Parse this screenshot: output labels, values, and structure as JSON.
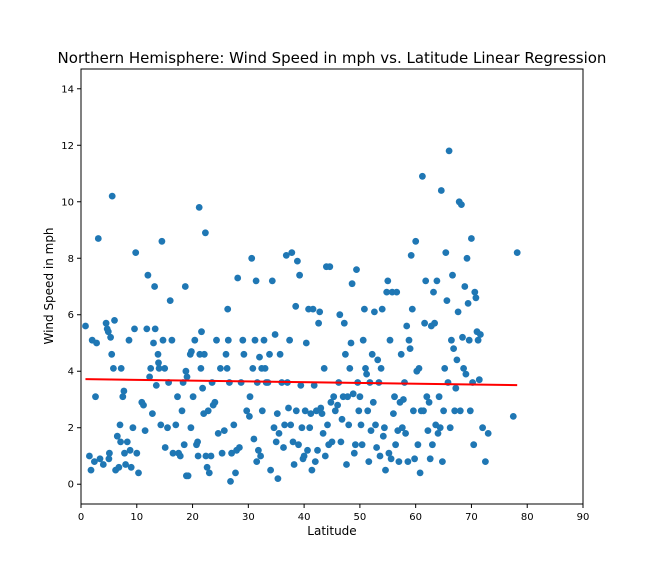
{
  "chart_data": {
    "type": "scatter",
    "title": "Northern Hemisphere: Wind Speed in mph vs. Latitude Linear Regression",
    "xlabel": "Latitude",
    "ylabel": "Wind Speed in mph",
    "xlim": [
      0,
      90
    ],
    "ylim": [
      -0.7,
      14.7
    ],
    "xticks": [
      "0",
      "10",
      "20",
      "30",
      "40",
      "50",
      "60",
      "70",
      "80",
      "90"
    ],
    "yticks": [
      "0",
      "2",
      "4",
      "6",
      "8",
      "10",
      "12",
      "14"
    ],
    "grid": false,
    "marker_color": "#1f77b4",
    "line_color": "#ff0000",
    "regression_line": {
      "x": [
        0.8,
        78.2
      ],
      "y": [
        3.72,
        3.51
      ]
    },
    "points": [
      [
        0.8,
        5.6
      ],
      [
        1.5,
        1.0
      ],
      [
        1.8,
        0.5
      ],
      [
        2.0,
        5.1
      ],
      [
        2.4,
        0.8
      ],
      [
        2.6,
        3.1
      ],
      [
        2.8,
        5.0
      ],
      [
        3.1,
        8.7
      ],
      [
        3.4,
        0.9
      ],
      [
        4.0,
        0.7
      ],
      [
        4.5,
        5.7
      ],
      [
        4.7,
        5.5
      ],
      [
        4.9,
        5.4
      ],
      [
        5.0,
        0.9
      ],
      [
        5.1,
        1.1
      ],
      [
        5.3,
        5.2
      ],
      [
        5.5,
        4.6
      ],
      [
        5.6,
        10.2
      ],
      [
        5.8,
        4.1
      ],
      [
        6.0,
        5.8
      ],
      [
        6.2,
        0.5
      ],
      [
        6.5,
        1.7
      ],
      [
        6.8,
        0.6
      ],
      [
        7.0,
        2.1
      ],
      [
        7.1,
        1.5
      ],
      [
        7.2,
        4.1
      ],
      [
        7.5,
        3.1
      ],
      [
        7.7,
        3.3
      ],
      [
        7.8,
        1.1
      ],
      [
        8.0,
        0.7
      ],
      [
        8.3,
        1.5
      ],
      [
        8.6,
        5.1
      ],
      [
        8.8,
        1.2
      ],
      [
        9.0,
        0.6
      ],
      [
        9.3,
        2.0
      ],
      [
        9.6,
        5.5
      ],
      [
        9.8,
        8.2
      ],
      [
        10.0,
        1.1
      ],
      [
        10.3,
        0.4
      ],
      [
        10.9,
        2.9
      ],
      [
        11.2,
        2.8
      ],
      [
        11.5,
        1.9
      ],
      [
        11.8,
        5.5
      ],
      [
        12.0,
        7.4
      ],
      [
        12.3,
        3.8
      ],
      [
        12.5,
        4.1
      ],
      [
        12.8,
        2.5
      ],
      [
        13.0,
        5.0
      ],
      [
        13.2,
        7.0
      ],
      [
        13.3,
        5.5
      ],
      [
        13.5,
        3.5
      ],
      [
        13.8,
        4.6
      ],
      [
        13.9,
        4.3
      ],
      [
        14.0,
        4.1
      ],
      [
        14.3,
        2.1
      ],
      [
        14.5,
        8.6
      ],
      [
        14.7,
        5.1
      ],
      [
        15.0,
        4.1
      ],
      [
        15.1,
        1.3
      ],
      [
        15.5,
        2.0
      ],
      [
        15.7,
        3.6
      ],
      [
        16.0,
        6.5
      ],
      [
        16.3,
        5.1
      ],
      [
        16.5,
        1.1
      ],
      [
        17.0,
        2.1
      ],
      [
        17.3,
        3.1
      ],
      [
        17.5,
        1.1
      ],
      [
        17.8,
        1.0
      ],
      [
        18.1,
        2.6
      ],
      [
        18.3,
        3.6
      ],
      [
        18.5,
        1.4
      ],
      [
        18.7,
        7.0
      ],
      [
        18.8,
        4.0
      ],
      [
        18.9,
        0.3
      ],
      [
        19.0,
        3.8
      ],
      [
        19.2,
        0.3
      ],
      [
        19.6,
        4.6
      ],
      [
        19.7,
        2.0
      ],
      [
        19.8,
        4.7
      ],
      [
        20.1,
        3.1
      ],
      [
        20.4,
        5.1
      ],
      [
        20.7,
        1.4
      ],
      [
        20.9,
        1.5
      ],
      [
        21.0,
        1.0
      ],
      [
        21.2,
        9.8
      ],
      [
        21.3,
        4.6
      ],
      [
        21.5,
        4.1
      ],
      [
        21.6,
        5.4
      ],
      [
        21.8,
        3.4
      ],
      [
        22.0,
        2.5
      ],
      [
        22.1,
        4.6
      ],
      [
        22.3,
        8.9
      ],
      [
        22.4,
        1.0
      ],
      [
        22.6,
        0.6
      ],
      [
        22.8,
        2.6
      ],
      [
        23.0,
        0.4
      ],
      [
        23.3,
        1.0
      ],
      [
        23.5,
        3.6
      ],
      [
        23.7,
        2.8
      ],
      [
        24.0,
        2.9
      ],
      [
        24.3,
        5.1
      ],
      [
        24.6,
        1.8
      ],
      [
        25.0,
        4.1
      ],
      [
        25.3,
        1.1
      ],
      [
        25.7,
        1.9
      ],
      [
        26.0,
        4.6
      ],
      [
        26.2,
        4.1
      ],
      [
        26.3,
        6.2
      ],
      [
        26.4,
        5.1
      ],
      [
        26.6,
        3.6
      ],
      [
        26.8,
        0.1
      ],
      [
        27.0,
        1.1
      ],
      [
        27.4,
        2.1
      ],
      [
        27.7,
        0.4
      ],
      [
        27.9,
        1.2
      ],
      [
        28.1,
        7.3
      ],
      [
        28.4,
        1.3
      ],
      [
        28.7,
        3.6
      ],
      [
        29.0,
        5.1
      ],
      [
        29.2,
        4.6
      ],
      [
        29.7,
        2.6
      ],
      [
        30.2,
        2.4
      ],
      [
        30.3,
        3.1
      ],
      [
        30.6,
        8.0
      ],
      [
        30.8,
        4.1
      ],
      [
        31.0,
        1.6
      ],
      [
        31.2,
        5.1
      ],
      [
        31.4,
        7.2
      ],
      [
        31.5,
        0.8
      ],
      [
        31.6,
        3.6
      ],
      [
        31.8,
        1.2
      ],
      [
        32.0,
        4.5
      ],
      [
        32.2,
        1.0
      ],
      [
        32.4,
        4.1
      ],
      [
        32.5,
        2.6
      ],
      [
        32.8,
        5.1
      ],
      [
        33.0,
        4.1
      ],
      [
        33.2,
        3.6
      ],
      [
        33.5,
        3.6
      ],
      [
        33.8,
        4.6
      ],
      [
        34.0,
        0.5
      ],
      [
        34.3,
        7.2
      ],
      [
        34.6,
        2.0
      ],
      [
        34.8,
        5.3
      ],
      [
        35.0,
        1.5
      ],
      [
        35.2,
        2.5
      ],
      [
        35.3,
        0.2
      ],
      [
        35.5,
        1.8
      ],
      [
        35.7,
        4.6
      ],
      [
        36.0,
        3.6
      ],
      [
        36.3,
        1.3
      ],
      [
        36.5,
        2.1
      ],
      [
        36.8,
        8.1
      ],
      [
        37.0,
        3.6
      ],
      [
        37.2,
        2.7
      ],
      [
        37.4,
        5.1
      ],
      [
        37.6,
        2.1
      ],
      [
        37.8,
        8.2
      ],
      [
        38.0,
        1.5
      ],
      [
        38.2,
        0.7
      ],
      [
        38.5,
        6.3
      ],
      [
        38.6,
        2.6
      ],
      [
        38.8,
        7.9
      ],
      [
        39.0,
        1.4
      ],
      [
        39.2,
        7.4
      ],
      [
        39.4,
        3.5
      ],
      [
        39.6,
        2.0
      ],
      [
        39.8,
        0.9
      ],
      [
        40.0,
        1.0
      ],
      [
        40.2,
        2.6
      ],
      [
        40.4,
        5.0
      ],
      [
        40.6,
        1.2
      ],
      [
        40.8,
        6.2
      ],
      [
        41.0,
        2.0
      ],
      [
        41.2,
        2.5
      ],
      [
        41.4,
        0.5
      ],
      [
        41.6,
        6.2
      ],
      [
        41.8,
        3.5
      ],
      [
        42.0,
        0.8
      ],
      [
        42.2,
        2.6
      ],
      [
        42.4,
        1.2
      ],
      [
        42.6,
        5.7
      ],
      [
        42.8,
        6.1
      ],
      [
        43.0,
        2.7
      ],
      [
        43.2,
        2.5
      ],
      [
        43.4,
        1.8
      ],
      [
        43.6,
        4.1
      ],
      [
        43.8,
        1.0
      ],
      [
        44.0,
        7.7
      ],
      [
        44.2,
        2.1
      ],
      [
        44.4,
        1.4
      ],
      [
        44.6,
        7.7
      ],
      [
        44.8,
        2.9
      ],
      [
        45.0,
        1.5
      ],
      [
        45.3,
        3.1
      ],
      [
        45.6,
        2.6
      ],
      [
        46.0,
        2.8
      ],
      [
        46.2,
        3.6
      ],
      [
        46.4,
        6.0
      ],
      [
        46.6,
        1.5
      ],
      [
        46.8,
        2.3
      ],
      [
        47.0,
        3.1
      ],
      [
        47.2,
        5.7
      ],
      [
        47.4,
        4.6
      ],
      [
        47.6,
        0.7
      ],
      [
        47.8,
        3.1
      ],
      [
        48.0,
        2.1
      ],
      [
        48.2,
        4.1
      ],
      [
        48.4,
        5.0
      ],
      [
        48.6,
        7.1
      ],
      [
        48.8,
        3.2
      ],
      [
        49.0,
        1.1
      ],
      [
        49.2,
        1.4
      ],
      [
        49.4,
        7.6
      ],
      [
        49.6,
        3.6
      ],
      [
        49.8,
        2.6
      ],
      [
        50.0,
        3.1
      ],
      [
        50.2,
        2.1
      ],
      [
        50.4,
        1.4
      ],
      [
        50.6,
        5.1
      ],
      [
        50.8,
        6.2
      ],
      [
        51.0,
        4.1
      ],
      [
        51.2,
        3.9
      ],
      [
        51.4,
        2.6
      ],
      [
        51.6,
        0.8
      ],
      [
        51.8,
        3.6
      ],
      [
        52.0,
        1.9
      ],
      [
        52.2,
        4.6
      ],
      [
        52.4,
        2.9
      ],
      [
        52.6,
        6.1
      ],
      [
        52.8,
        2.1
      ],
      [
        53.0,
        1.3
      ],
      [
        53.2,
        4.4
      ],
      [
        53.4,
        3.6
      ],
      [
        53.6,
        1.0
      ],
      [
        53.8,
        4.1
      ],
      [
        54.0,
        6.2
      ],
      [
        54.2,
        1.7
      ],
      [
        54.4,
        2.0
      ],
      [
        54.6,
        0.5
      ],
      [
        54.8,
        6.8
      ],
      [
        55.0,
        7.2
      ],
      [
        55.2,
        1.1
      ],
      [
        55.4,
        5.1
      ],
      [
        55.6,
        0.9
      ],
      [
        55.8,
        6.8
      ],
      [
        56.0,
        2.5
      ],
      [
        56.2,
        3.1
      ],
      [
        56.4,
        1.4
      ],
      [
        56.6,
        6.8
      ],
      [
        56.8,
        1.9
      ],
      [
        57.0,
        0.8
      ],
      [
        57.2,
        2.9
      ],
      [
        57.4,
        4.6
      ],
      [
        57.6,
        2.0
      ],
      [
        57.8,
        3.0
      ],
      [
        58.0,
        3.6
      ],
      [
        58.2,
        1.8
      ],
      [
        58.4,
        5.6
      ],
      [
        58.6,
        0.8
      ],
      [
        58.8,
        5.1
      ],
      [
        59.0,
        4.8
      ],
      [
        59.2,
        8.1
      ],
      [
        59.4,
        6.2
      ],
      [
        59.6,
        2.6
      ],
      [
        59.8,
        0.9
      ],
      [
        60.0,
        8.6
      ],
      [
        60.2,
        4.0
      ],
      [
        60.4,
        1.4
      ],
      [
        60.6,
        4.1
      ],
      [
        60.8,
        0.4
      ],
      [
        61.0,
        2.6
      ],
      [
        61.2,
        10.9
      ],
      [
        61.4,
        2.6
      ],
      [
        61.6,
        5.7
      ],
      [
        61.8,
        7.2
      ],
      [
        62.0,
        3.1
      ],
      [
        62.2,
        1.9
      ],
      [
        62.4,
        2.9
      ],
      [
        62.6,
        0.9
      ],
      [
        62.8,
        5.6
      ],
      [
        63.0,
        1.4
      ],
      [
        63.2,
        6.8
      ],
      [
        63.4,
        5.7
      ],
      [
        63.6,
        2.1
      ],
      [
        63.8,
        7.2
      ],
      [
        64.0,
        1.8
      ],
      [
        64.2,
        3.1
      ],
      [
        64.4,
        2.0
      ],
      [
        64.6,
        10.4
      ],
      [
        64.8,
        0.8
      ],
      [
        65.0,
        2.6
      ],
      [
        65.2,
        4.1
      ],
      [
        65.4,
        8.2
      ],
      [
        65.6,
        6.5
      ],
      [
        65.8,
        3.6
      ],
      [
        66.0,
        11.8
      ],
      [
        66.2,
        2.0
      ],
      [
        66.4,
        5.1
      ],
      [
        66.6,
        7.4
      ],
      [
        66.8,
        4.8
      ],
      [
        67.0,
        2.6
      ],
      [
        67.2,
        3.4
      ],
      [
        67.4,
        4.4
      ],
      [
        67.6,
        6.1
      ],
      [
        67.8,
        10.0
      ],
      [
        68.0,
        2.6
      ],
      [
        68.2,
        9.9
      ],
      [
        68.4,
        5.2
      ],
      [
        68.6,
        4.1
      ],
      [
        68.8,
        7.0
      ],
      [
        69.0,
        3.9
      ],
      [
        69.2,
        8.0
      ],
      [
        69.4,
        6.4
      ],
      [
        69.6,
        5.1
      ],
      [
        69.8,
        2.6
      ],
      [
        70.0,
        8.7
      ],
      [
        70.2,
        3.6
      ],
      [
        70.4,
        1.4
      ],
      [
        70.6,
        6.8
      ],
      [
        70.8,
        6.6
      ],
      [
        71.0,
        5.4
      ],
      [
        71.2,
        5.1
      ],
      [
        71.4,
        3.7
      ],
      [
        71.6,
        5.3
      ],
      [
        72.0,
        2.0
      ],
      [
        72.5,
        0.8
      ],
      [
        73.0,
        1.8
      ],
      [
        77.5,
        2.4
      ],
      [
        78.2,
        8.2
      ]
    ]
  }
}
